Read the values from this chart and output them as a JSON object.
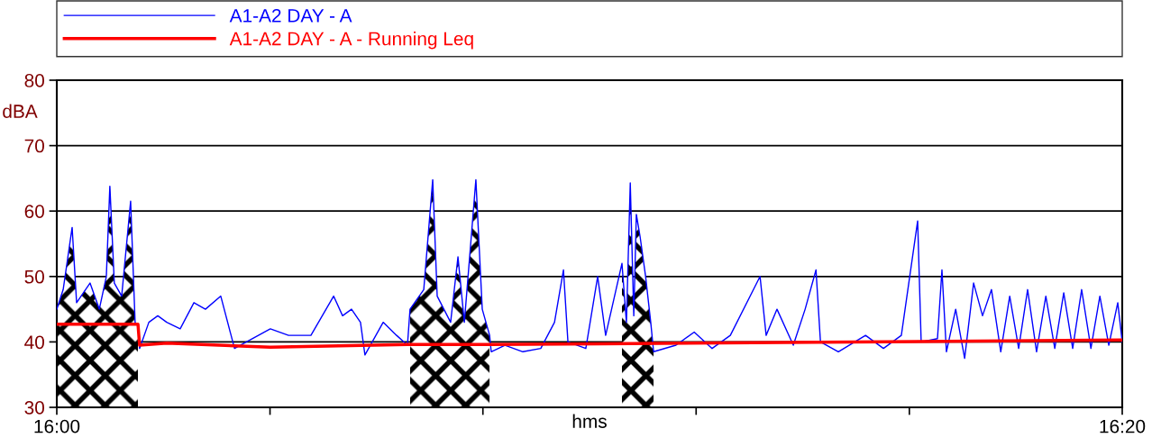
{
  "chart_data": {
    "type": "line",
    "xlabel": "hms",
    "ylabel": "dBA",
    "xlim": [
      16.0,
      16.3333
    ],
    "xticks": [
      {
        "value": 16.0,
        "label": "16:00"
      },
      {
        "value": 16.0667,
        "label": null
      },
      {
        "value": 16.1333,
        "label": null
      },
      {
        "value": 16.2,
        "label": null
      },
      {
        "value": 16.2667,
        "label": null
      },
      {
        "value": 16.3333,
        "label": "16:20"
      }
    ],
    "ylim": [
      30,
      80
    ],
    "yticks": [
      30,
      40,
      50,
      60,
      70,
      80
    ],
    "grid": "y",
    "legend": "top",
    "line_style": "solid",
    "marker": "none",
    "series": [
      {
        "name": "A1-A2 DAY - A",
        "color": "#0000ff",
        "x": [
          16.0,
          16.002,
          16.0048,
          16.0062,
          16.0104,
          16.0133,
          16.0155,
          16.0166,
          16.018,
          16.0203,
          16.0231,
          16.0245,
          16.0254,
          16.0259,
          16.0288,
          16.0316,
          16.0344,
          16.0386,
          16.0429,
          16.0465,
          16.0513,
          16.0556,
          16.0668,
          16.0725,
          16.0795,
          16.0866,
          16.0894,
          16.0922,
          16.095,
          16.0964,
          16.1021,
          16.1063,
          16.1097,
          16.1105,
          16.1148,
          16.1176,
          16.119,
          16.1232,
          16.1255,
          16.1275,
          16.1311,
          16.1331,
          16.1354,
          16.1359,
          16.1402,
          16.1458,
          16.1514,
          16.1557,
          16.1585,
          16.1599,
          16.1655,
          16.1692,
          16.1717,
          16.1768,
          16.1782,
          16.1794,
          16.1805,
          16.1813,
          16.1825,
          16.1842,
          16.1858,
          16.1867,
          16.1937,
          16.1994,
          16.205,
          16.2107,
          16.22,
          16.2219,
          16.2253,
          16.2304,
          16.2341,
          16.2375,
          16.2389,
          16.2445,
          16.253,
          16.2586,
          16.2642,
          16.2693,
          16.2704,
          16.2755,
          16.2769,
          16.2783,
          16.2812,
          16.284,
          16.2868,
          16.2896,
          16.2924,
          16.2953,
          16.2981,
          16.3009,
          16.3037,
          16.3065,
          16.3094,
          16.3122,
          16.315,
          16.3178,
          16.3206,
          16.3235,
          16.3263,
          16.3291,
          16.3319,
          16.3333
        ],
        "values": [
          45,
          48,
          57.5,
          46,
          49,
          45,
          50,
          63.8,
          49,
          47,
          61.5,
          43,
          42.5,
          39,
          43,
          44,
          43,
          42,
          46,
          45,
          47,
          39,
          42,
          41,
          41,
          47,
          44,
          45,
          43,
          38,
          43,
          41,
          39.5,
          45,
          48,
          64.8,
          47,
          43,
          53,
          43,
          64.8,
          45,
          41,
          38.5,
          39.5,
          38.5,
          39,
          43,
          51,
          40,
          39,
          50,
          41,
          52,
          43,
          64.3,
          44,
          59.5,
          56,
          50,
          43,
          38.5,
          39.5,
          41.5,
          39,
          41,
          50,
          41,
          45,
          39.5,
          45,
          51,
          40,
          38.5,
          41,
          39,
          41,
          58.5,
          40,
          40.5,
          51,
          38.5,
          45,
          37.5,
          49,
          44,
          48,
          38.5,
          47,
          39,
          48,
          38.5,
          47,
          39,
          47.5,
          39,
          48,
          39,
          47,
          39.5,
          46,
          40
        ]
      },
      {
        "name": "A1-A2 DAY - A - Running Leq",
        "color": "#ff0000",
        "x": [
          16.0,
          16.0254,
          16.0259,
          16.0344,
          16.0668,
          16.1097,
          16.1354,
          16.17,
          16.3333
        ],
        "values": [
          42.7,
          42.7,
          39.5,
          39.8,
          39.2,
          39.6,
          39.6,
          39.7,
          40.3
        ]
      }
    ],
    "bands": [
      {
        "axis": "x",
        "from": 16.0,
        "to": 16.0254,
        "color": "#000000"
      },
      {
        "axis": "x",
        "from": 16.1105,
        "to": 16.1354,
        "color": "#000000"
      },
      {
        "axis": "x",
        "from": 16.1768,
        "to": 16.1867,
        "color": "#000000"
      }
    ]
  }
}
